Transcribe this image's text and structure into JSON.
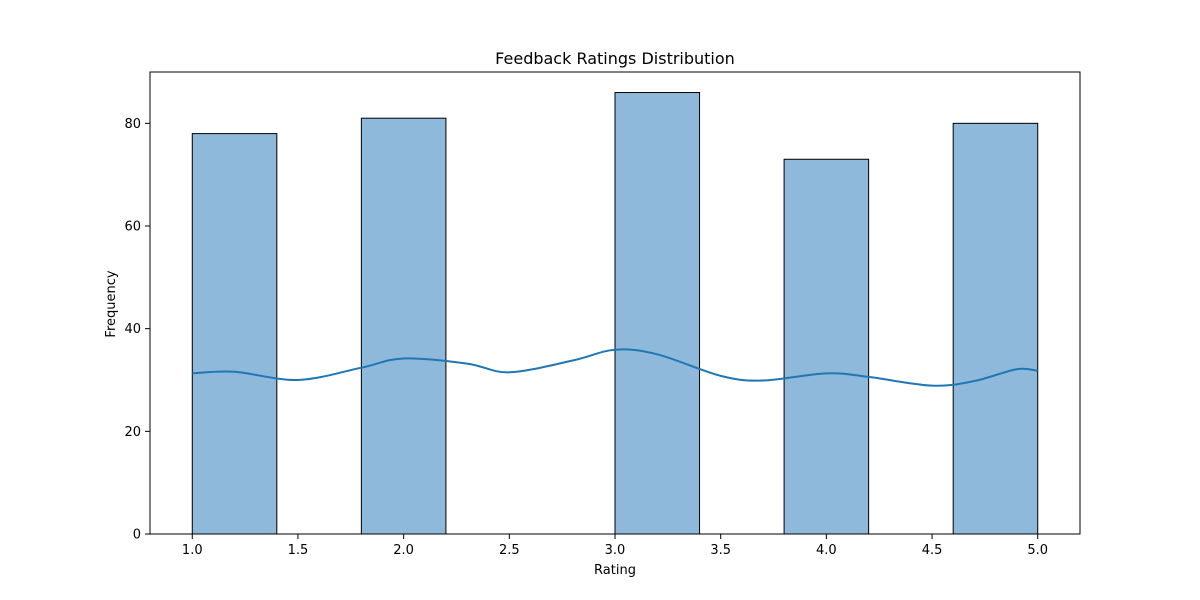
{
  "chart_data": {
    "type": "bar",
    "title": "Feedback Ratings Distribution",
    "xlabel": "Rating",
    "ylabel": "Frequency",
    "xlim": [
      0.8,
      5.2
    ],
    "ylim": [
      0,
      90
    ],
    "xticks": [
      "1.0",
      "1.5",
      "2.0",
      "2.5",
      "3.0",
      "3.5",
      "4.0",
      "4.5",
      "5.0"
    ],
    "yticks": [
      "0",
      "20",
      "40",
      "60",
      "80"
    ],
    "bins": [
      {
        "x0": 1.0,
        "x1": 1.4,
        "value": 78
      },
      {
        "x0": 1.4,
        "x1": 1.8,
        "value": 0
      },
      {
        "x0": 1.8,
        "x1": 2.2,
        "value": 81
      },
      {
        "x0": 2.2,
        "x1": 2.6,
        "value": 0
      },
      {
        "x0": 2.6,
        "x1": 3.0,
        "value": 0
      },
      {
        "x0": 3.0,
        "x1": 3.4,
        "value": 86
      },
      {
        "x0": 3.4,
        "x1": 3.8,
        "value": 0
      },
      {
        "x0": 3.8,
        "x1": 4.2,
        "value": 73
      },
      {
        "x0": 4.2,
        "x1": 4.6,
        "value": 0
      },
      {
        "x0": 4.6,
        "x1": 5.0,
        "value": 80
      }
    ],
    "kde": {
      "x": [
        1.0,
        1.2,
        1.5,
        1.8,
        2.0,
        2.3,
        2.5,
        2.8,
        3.0,
        3.2,
        3.5,
        3.7,
        4.0,
        4.2,
        4.5,
        4.7,
        4.9,
        5.0
      ],
      "y": [
        31.3,
        31.6,
        30.0,
        32.4,
        34.2,
        33.2,
        31.5,
        33.8,
        35.9,
        35.0,
        30.8,
        29.9,
        31.3,
        30.6,
        28.9,
        29.8,
        32.1,
        31.8
      ]
    },
    "grid": false,
    "colors": {
      "bar_fill": "#8fb9da",
      "bar_edge": "#000000",
      "kde_line": "#1f77b4"
    }
  }
}
